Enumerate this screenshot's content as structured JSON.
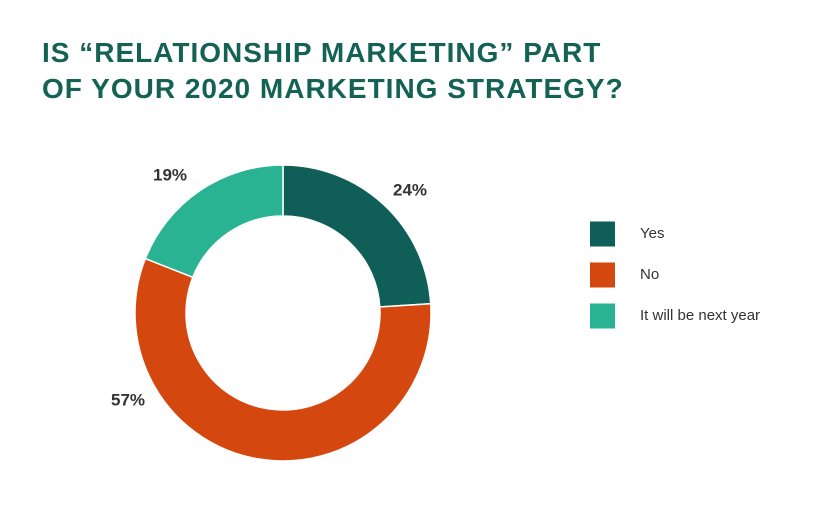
{
  "chart_data": {
    "type": "donut",
    "title": [
      "IS “RELATIONSHIP MARKETING” PART",
      "OF YOUR 2020 MARKETING STRATEGY?"
    ],
    "categories": [
      "Yes",
      "No",
      "It will be next year"
    ],
    "values": [
      24,
      57,
      19
    ],
    "value_labels": [
      "24%",
      "57%",
      "19%"
    ],
    "colors": [
      "#0f5e57",
      "#d4470f",
      "#2ab393"
    ],
    "legend": "right"
  }
}
